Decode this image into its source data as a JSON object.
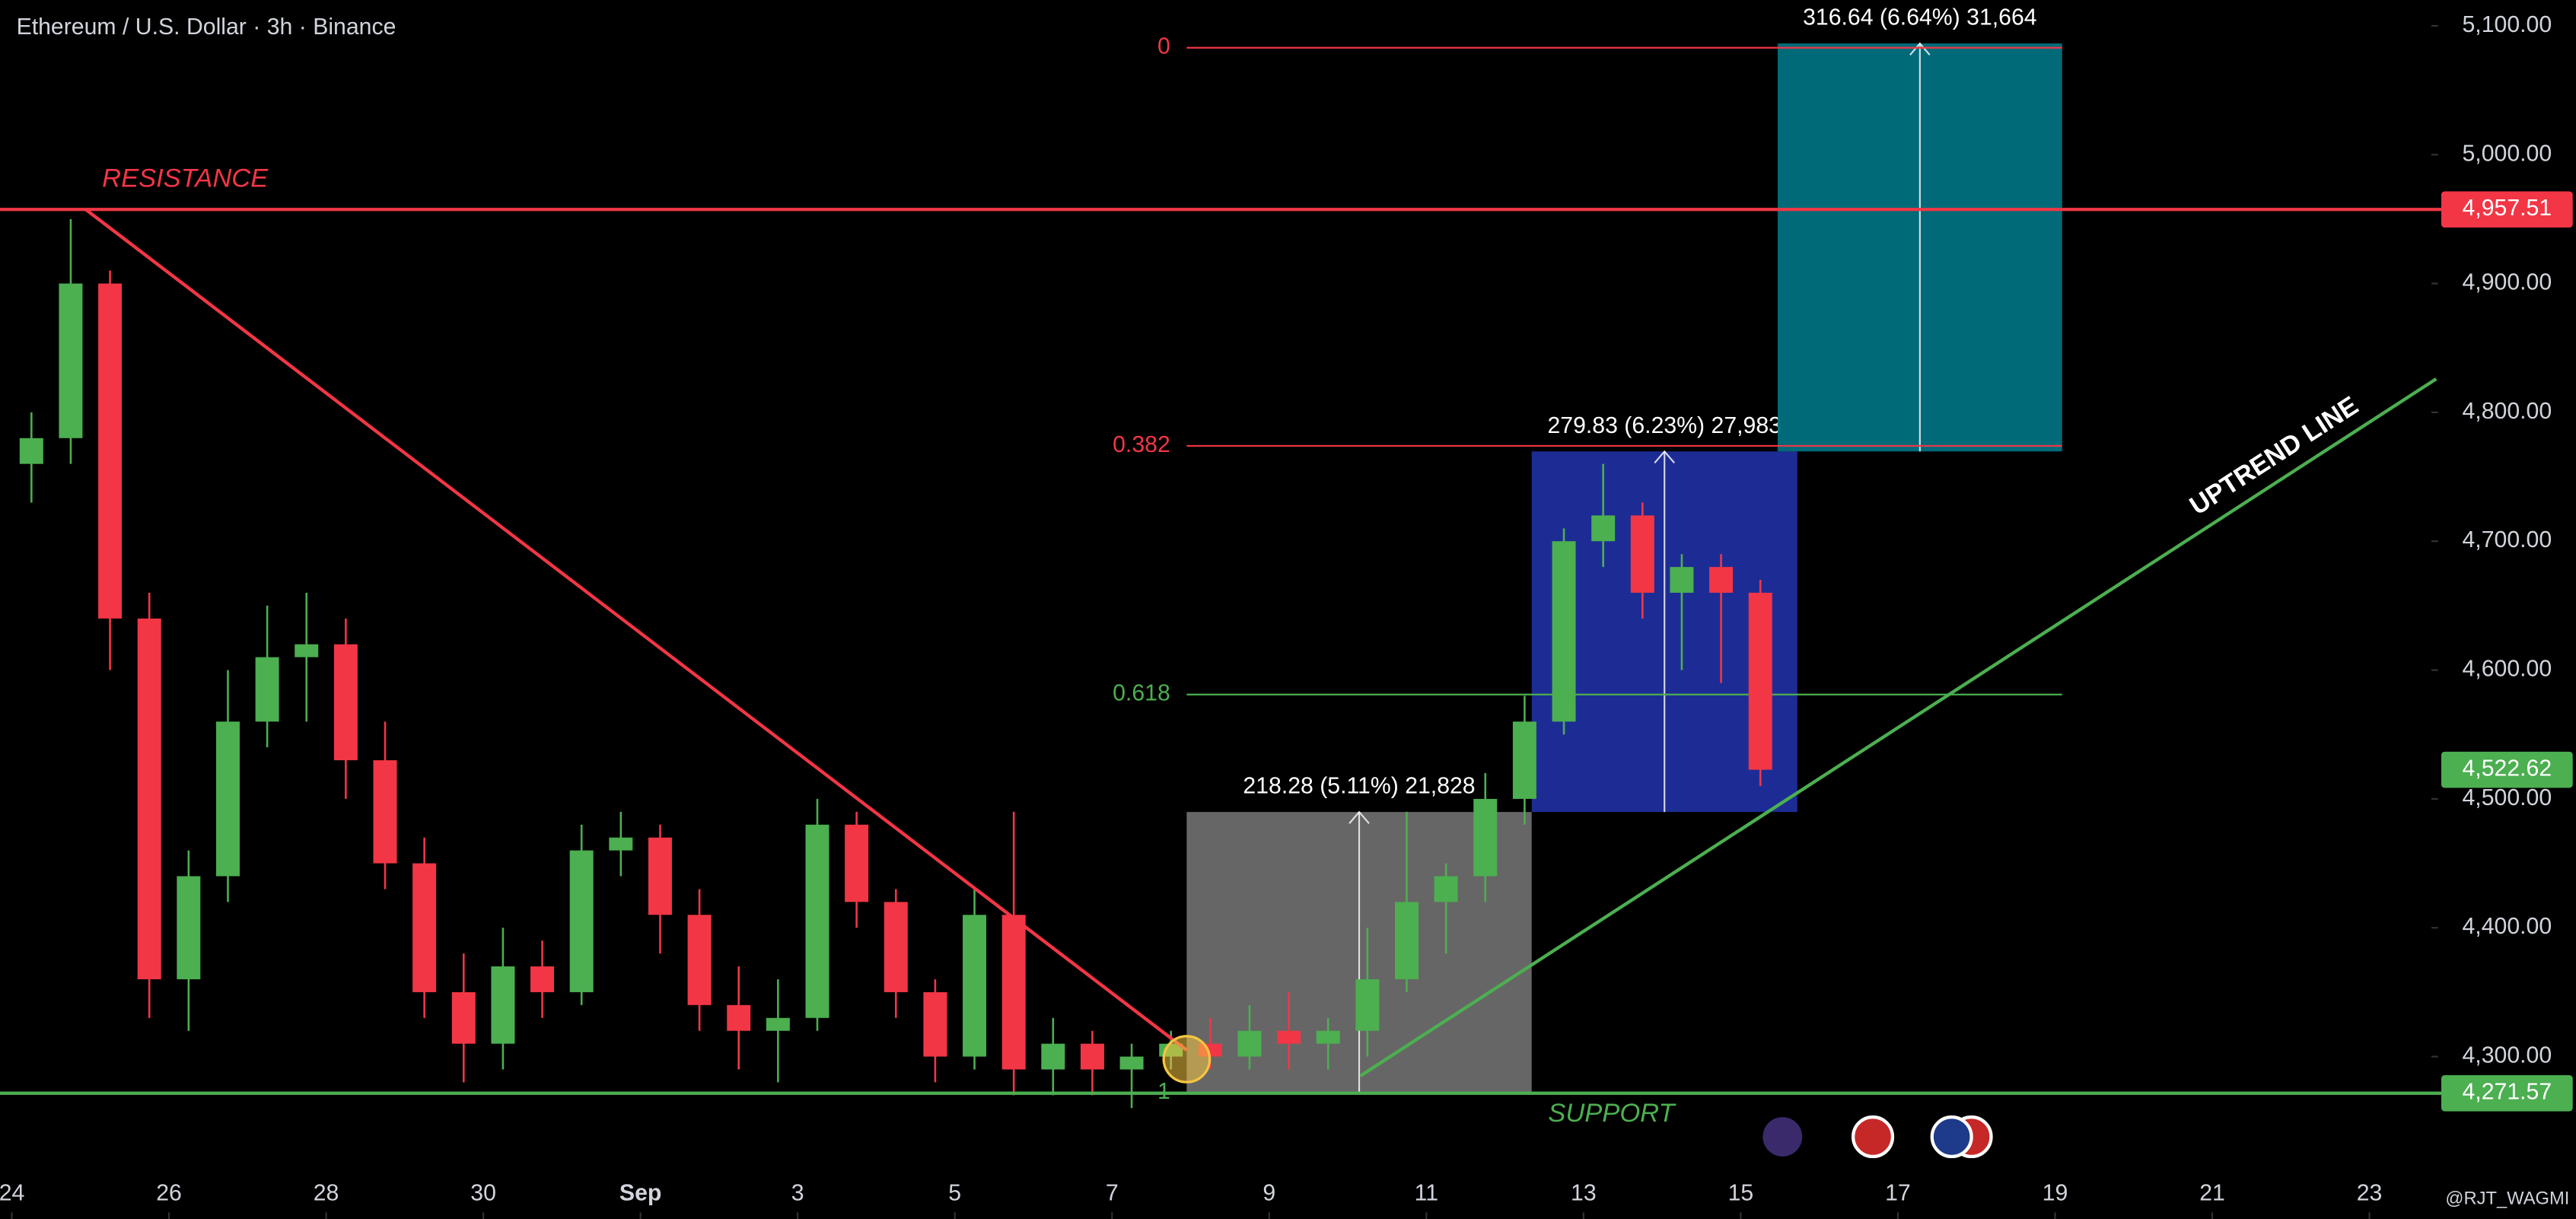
{
  "chart_data": {
    "type": "candlestick",
    "title": "Ethereum / U.S. Dollar · 3h · Binance",
    "watermark": "@RJT_WAGMI",
    "up_color": "#4caf50",
    "down_color": "#f23645",
    "x": [
      0.25,
      0.75,
      1.25,
      1.75,
      2.25,
      2.75,
      3.25,
      3.75,
      4.25,
      4.75,
      5.25,
      5.75,
      6.25,
      6.75,
      7.25,
      7.75,
      8.25,
      8.75,
      9.25,
      9.75,
      10.25,
      10.75,
      11.25,
      11.75,
      12.25,
      12.75,
      13.25,
      13.75,
      14.25,
      14.75,
      15.25,
      15.75,
      16.25,
      16.75,
      17.25,
      17.75,
      18.25,
      18.75,
      19.25,
      19.75,
      20.25,
      20.75,
      21.25,
      21.75,
      22.25
    ],
    "open": [
      4760,
      4780,
      4900,
      4640,
      4360,
      4440,
      4560,
      4610,
      4620,
      4530,
      4450,
      4350,
      4310,
      4370,
      4350,
      4460,
      4470,
      4410,
      4340,
      4320,
      4330,
      4480,
      4420,
      4350,
      4300,
      4410,
      4290,
      4310,
      4290,
      4300,
      4310,
      4300,
      4320,
      4310,
      4320,
      4360,
      4420,
      4440,
      4500,
      4560,
      4700,
      4720,
      4660,
      4680,
      4660
    ],
    "high": [
      4800,
      4950,
      4910,
      4660,
      4460,
      4600,
      4650,
      4660,
      4640,
      4560,
      4470,
      4380,
      4400,
      4390,
      4480,
      4490,
      4480,
      4430,
      4370,
      4360,
      4500,
      4490,
      4430,
      4360,
      4430,
      4490,
      4330,
      4320,
      4310,
      4320,
      4330,
      4340,
      4350,
      4330,
      4400,
      4490,
      4450,
      4520,
      4580,
      4710,
      4760,
      4730,
      4690,
      4690,
      4670
    ],
    "low": [
      4730,
      4760,
      4600,
      4330,
      4320,
      4420,
      4540,
      4560,
      4500,
      4430,
      4330,
      4280,
      4290,
      4330,
      4340,
      4440,
      4380,
      4320,
      4290,
      4280,
      4320,
      4400,
      4330,
      4280,
      4290,
      4270,
      4270,
      4270,
      4260,
      4290,
      4290,
      4290,
      4290,
      4290,
      4300,
      4350,
      4380,
      4420,
      4480,
      4550,
      4680,
      4640,
      4600,
      4590,
      4510
    ],
    "close": [
      4780,
      4900,
      4640,
      4360,
      4440,
      4560,
      4610,
      4620,
      4530,
      4450,
      4350,
      4310,
      4370,
      4350,
      4460,
      4470,
      4410,
      4340,
      4320,
      4330,
      4480,
      4420,
      4350,
      4300,
      4410,
      4290,
      4310,
      4290,
      4300,
      4310,
      4300,
      4320,
      4310,
      4320,
      4360,
      4420,
      4440,
      4500,
      4560,
      4700,
      4720,
      4660,
      4680,
      4660,
      4522.62
    ],
    "xlim": [
      -0.15,
      30.58
    ],
    "ylim": [
      4174,
      5120
    ],
    "xticks": [
      {
        "value": 0,
        "label": "24"
      },
      {
        "value": 2,
        "label": "26"
      },
      {
        "value": 4,
        "label": "28"
      },
      {
        "value": 6,
        "label": "30"
      },
      {
        "value": 8,
        "label": "Sep"
      },
      {
        "value": 10,
        "label": "3"
      },
      {
        "value": 12,
        "label": "5"
      },
      {
        "value": 14,
        "label": "7"
      },
      {
        "value": 16,
        "label": "9"
      },
      {
        "value": 18,
        "label": "11"
      },
      {
        "value": 20,
        "label": "13"
      },
      {
        "value": 22,
        "label": "15"
      },
      {
        "value": 24,
        "label": "17"
      },
      {
        "value": 26,
        "label": "19"
      },
      {
        "value": 28,
        "label": "21"
      },
      {
        "value": 30,
        "label": "23"
      }
    ],
    "yticks": [
      {
        "value": 4300,
        "label": "4,300.00"
      },
      {
        "value": 4400,
        "label": "4,400.00"
      },
      {
        "value": 4500,
        "label": "4,500.00"
      },
      {
        "value": 4600,
        "label": "4,600.00"
      },
      {
        "value": 4700,
        "label": "4,700.00"
      },
      {
        "value": 4800,
        "label": "4,800.00"
      },
      {
        "value": 4900,
        "label": "4,900.00"
      },
      {
        "value": 5000,
        "label": "5,000.00"
      },
      {
        "value": 5100,
        "label": "5,100.00"
      }
    ],
    "price_levels": [
      {
        "name": "RESISTANCE",
        "value": 4957.51,
        "label": "4,957.51",
        "color": "#f23645"
      },
      {
        "name": "SUPPORT",
        "value": 4271.57,
        "label": "4,271.57",
        "color": "#4caf50"
      }
    ],
    "last_price": {
      "value": 4522.62,
      "label": "4,522.62",
      "color": "#4caf50"
    },
    "trendlines": [
      {
        "x": [
          0.94,
          14.95
        ],
        "y": [
          4957.51,
          4305
        ],
        "color": "#f23645"
      },
      {
        "x": [
          17.16,
          30.85
        ],
        "y": [
          4285,
          4826
        ],
        "color": "#4caf50",
        "label": "UPTREND LINE"
      }
    ],
    "fib": {
      "from_x": 14.95,
      "to_x": 26.09,
      "levels": [
        {
          "level": 0,
          "price": 5083,
          "color": "#f23645"
        },
        {
          "level": 0.382,
          "price": 4774,
          "color": "#f23645"
        },
        {
          "level": 0.618,
          "price": 4581,
          "color": "#4caf50"
        },
        {
          "level": 1,
          "price": 4272,
          "color": "#4caf50"
        }
      ]
    },
    "measures": [
      {
        "from_x": 14.95,
        "to_x": 19.34,
        "from_price": 4271.57,
        "to_price": 4489.85,
        "label": "218.28 (5.11%) 21,828",
        "color": "#6b6b6b"
      },
      {
        "from_x": 19.34,
        "to_x": 22.72,
        "from_price": 4489.85,
        "to_price": 4769.68,
        "label": "279.83 (6.23%) 27,983",
        "color": "#1f2e9c"
      },
      {
        "from_x": 22.47,
        "to_x": 26.09,
        "from_price": 4769.68,
        "to_price": 5086.32,
        "label": "316.64 (6.64%) 31,664",
        "color": "#00707e"
      }
    ],
    "marker": {
      "x": 14.95,
      "y": 4298,
      "color": "#f5c542"
    }
  }
}
